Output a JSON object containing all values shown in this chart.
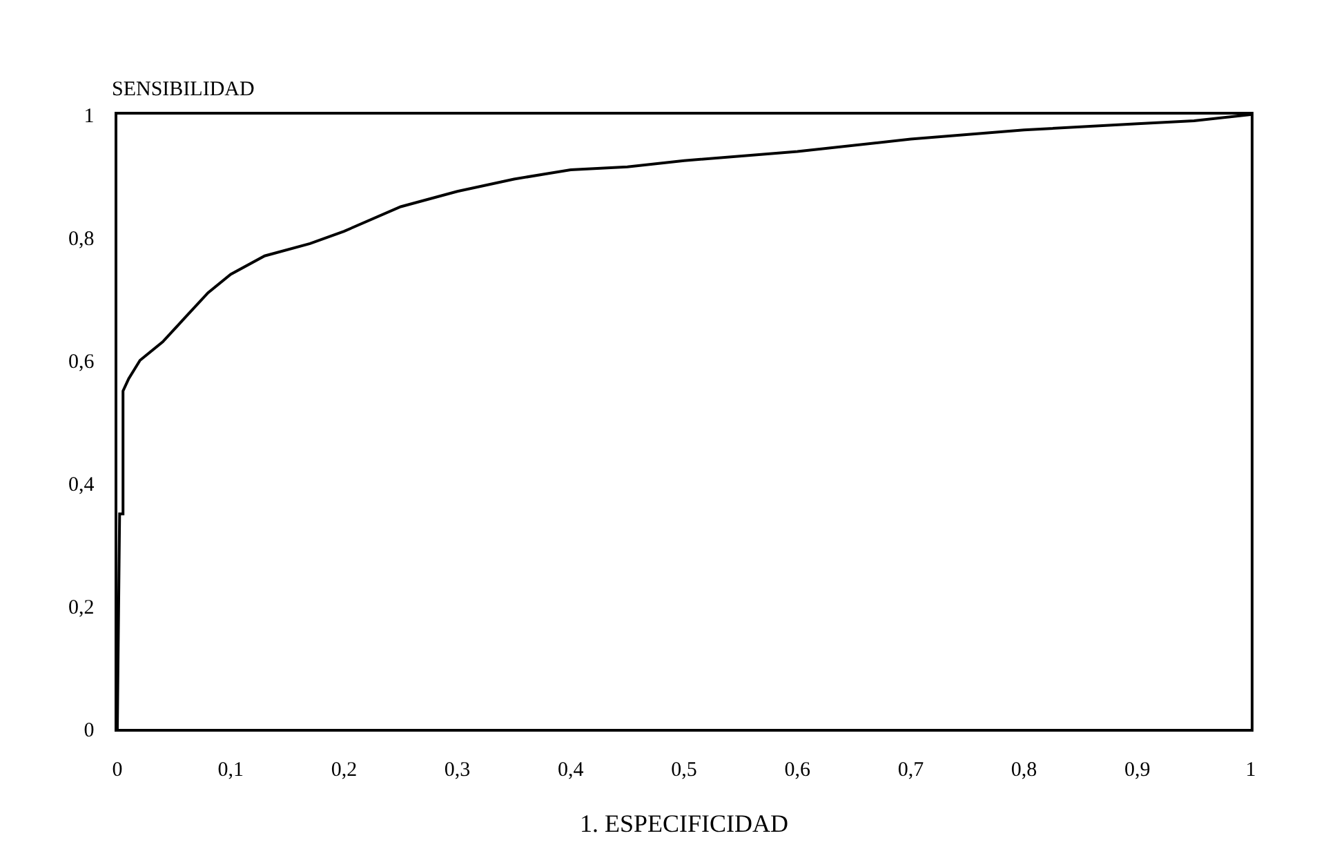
{
  "chart_data": {
    "type": "line",
    "xlabel": "1. ESPECIFICIDAD",
    "ylabel": "SENSIBILIDAD",
    "x": [
      0,
      0.002,
      0.005,
      0.005,
      0.01,
      0.02,
      0.04,
      0.06,
      0.08,
      0.1,
      0.13,
      0.17,
      0.2,
      0.25,
      0.3,
      0.35,
      0.4,
      0.45,
      0.5,
      0.6,
      0.7,
      0.8,
      0.9,
      0.95,
      1
    ],
    "series": [
      {
        "color": "#000000",
        "values": [
          0,
          0.35,
          0.35,
          0.55,
          0.57,
          0.6,
          0.63,
          0.67,
          0.71,
          0.74,
          0.77,
          0.79,
          0.81,
          0.85,
          0.875,
          0.895,
          0.91,
          0.915,
          0.925,
          0.94,
          0.96,
          0.975,
          0.985,
          0.99,
          1
        ]
      }
    ],
    "xlim": [
      0,
      1
    ],
    "ylim": [
      0,
      1
    ],
    "xticks": [
      0,
      {
        "value": 0.1,
        "label": "0,1"
      },
      {
        "value": 0.2,
        "label": "0,2"
      },
      {
        "value": 0.3,
        "label": "0,3"
      },
      {
        "value": 0.4,
        "label": "0,4"
      },
      {
        "value": 0.5,
        "label": "0,5"
      },
      {
        "value": 0.6,
        "label": "0,6"
      },
      {
        "value": 0.7,
        "label": "0,7"
      },
      {
        "value": 0.8,
        "label": "0,8"
      },
      {
        "value": 0.9,
        "label": "0,9"
      },
      1
    ],
    "yticks": [
      0,
      {
        "value": 0.2,
        "label": "0,2"
      },
      {
        "value": 0.4,
        "label": "0,4"
      },
      {
        "value": 0.6,
        "label": "0,6"
      },
      {
        "value": 0.8,
        "label": "0,8"
      },
      1
    ],
    "marker": "none",
    "line_style": "solid"
  }
}
